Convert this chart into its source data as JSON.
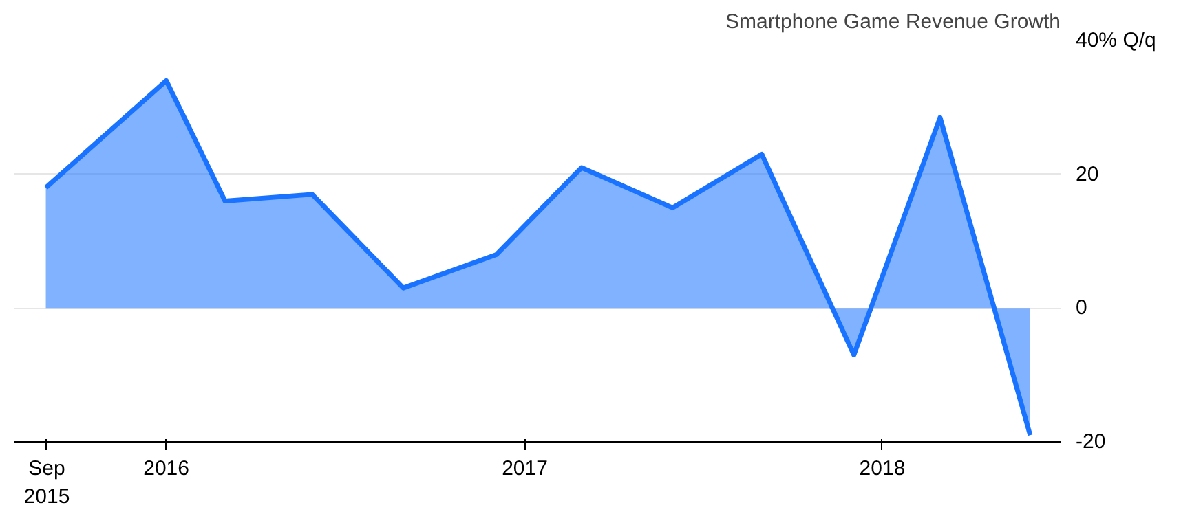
{
  "chart_data": {
    "type": "area",
    "title": "Smartphone Game Revenue Growth",
    "x": [
      "2015-08-31",
      "2016-01-01",
      "2016-03-01",
      "2016-05-29",
      "2016-08-30",
      "2016-12-03",
      "2017-02-28",
      "2017-06-01",
      "2017-08-31",
      "2017-12-03",
      "2018-03-01",
      "2018-06-01"
    ],
    "series": [
      {
        "color": "#1a73ff",
        "values": [
          18,
          34,
          16,
          17,
          3,
          8,
          21,
          15,
          23,
          -7,
          28.5,
          -19
        ]
      }
    ],
    "xlim": [
      "2015-07-30",
      "2018-07-02"
    ],
    "xticks": [
      {
        "value": "2015-09-01",
        "label": "Sep\n2015"
      },
      {
        "value": "2016-01-01",
        "label": "2016"
      },
      {
        "value": "2017-01-01",
        "label": "2017"
      },
      {
        "value": "2018-01-01",
        "label": "2018"
      }
    ],
    "ylim": [
      -20,
      40
    ],
    "yticks": [
      -20,
      0,
      20,
      {
        "value": 40,
        "label": "40% Q/q"
      }
    ],
    "grid": "y"
  }
}
